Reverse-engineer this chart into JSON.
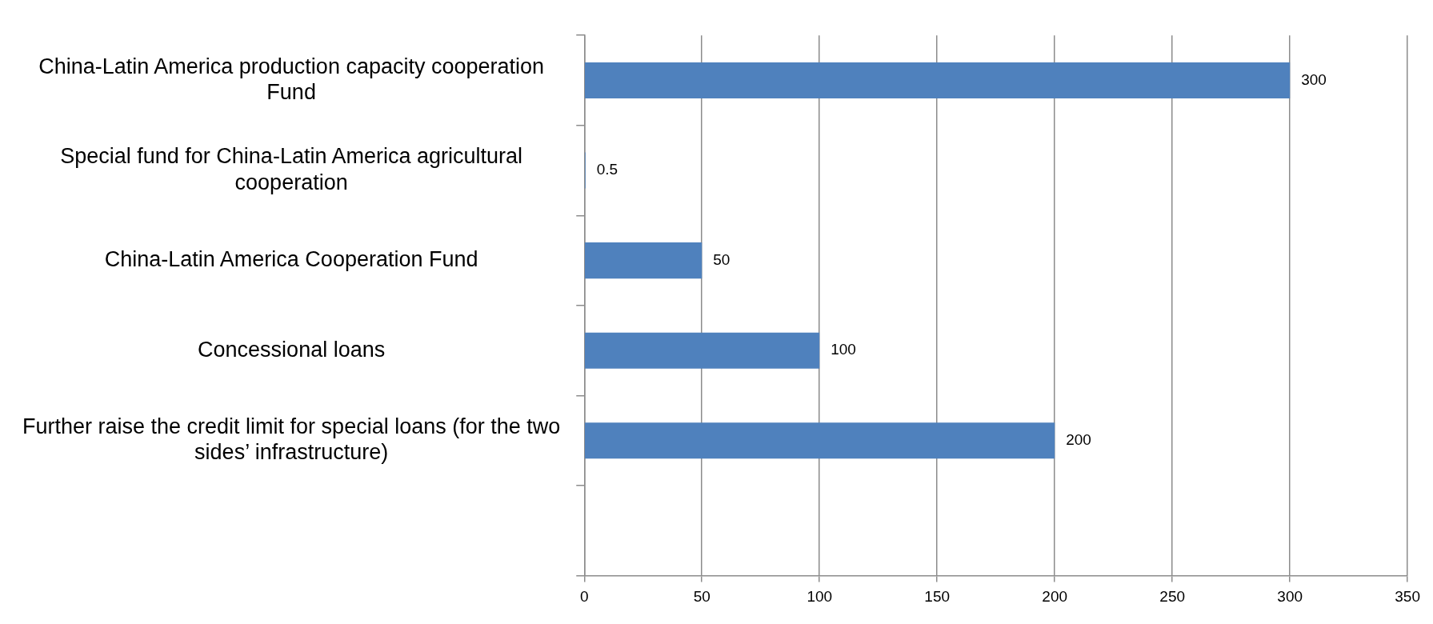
{
  "chart_data": {
    "type": "bar",
    "orientation": "horizontal",
    "categories": [
      "China-Latin America production capacity cooperation Fund",
      "Special fund for China-Latin America agricultural cooperation",
      "China-Latin America Cooperation Fund",
      "Concessional loans",
      "Further raise the credit limit for special loans (for the two sides’ infrastructure)",
      null
    ],
    "values": [
      300,
      0.5,
      50,
      100,
      200,
      null
    ],
    "color": "#4f81bd",
    "xlim": [
      0,
      350
    ],
    "xticks": [
      0,
      50,
      100,
      150,
      200,
      250,
      300,
      350
    ],
    "grid": "x",
    "legend": false,
    "data_labels": true
  }
}
